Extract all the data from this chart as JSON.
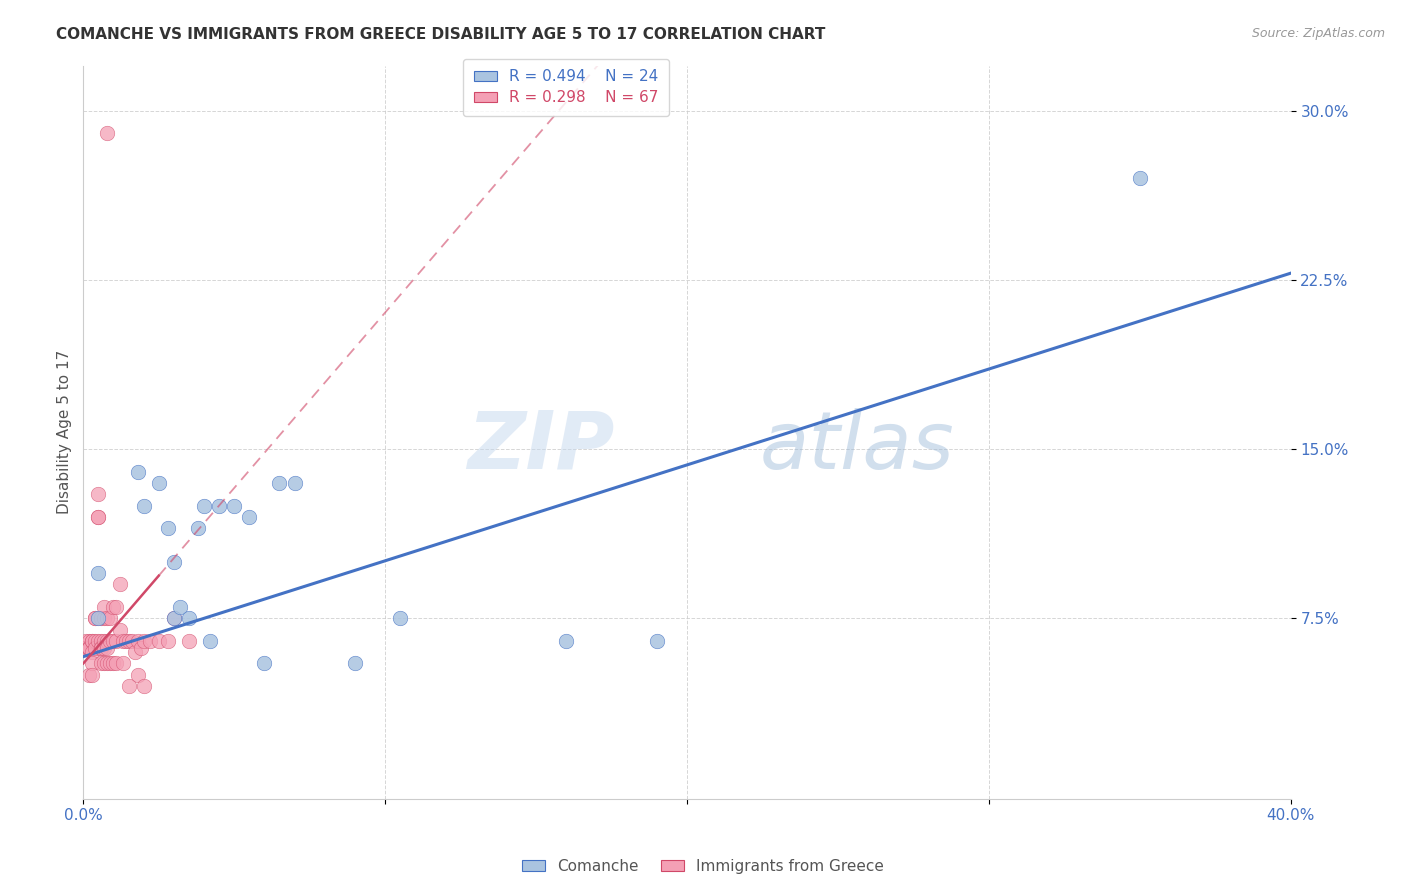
{
  "title": "COMANCHE VS IMMIGRANTS FROM GREECE DISABILITY AGE 5 TO 17 CORRELATION CHART",
  "source": "Source: ZipAtlas.com",
  "ylabel": "Disability Age 5 to 17",
  "xlim": [
    0.0,
    0.4
  ],
  "ylim": [
    -0.005,
    0.32
  ],
  "legend_blue_R": "0.494",
  "legend_blue_N": "24",
  "legend_pink_R": "0.298",
  "legend_pink_N": "67",
  "legend_label_blue": "Comanche",
  "legend_label_pink": "Immigrants from Greece",
  "color_blue": "#aac4e0",
  "color_pink": "#f4a0b5",
  "trendline_blue_color": "#4472c4",
  "trendline_pink_color": "#d04868",
  "watermark_zip": "ZIP",
  "watermark_atlas": "atlas",
  "comanche_x": [
    0.005,
    0.005,
    0.018,
    0.02,
    0.025,
    0.028,
    0.03,
    0.03,
    0.032,
    0.035,
    0.038,
    0.04,
    0.042,
    0.045,
    0.05,
    0.055,
    0.06,
    0.065,
    0.07,
    0.09,
    0.105,
    0.16,
    0.19,
    0.35
  ],
  "comanche_y": [
    0.095,
    0.075,
    0.14,
    0.125,
    0.135,
    0.115,
    0.075,
    0.1,
    0.08,
    0.075,
    0.115,
    0.125,
    0.065,
    0.125,
    0.125,
    0.12,
    0.055,
    0.135,
    0.135,
    0.055,
    0.075,
    0.065,
    0.065,
    0.27
  ],
  "greece_x": [
    0.001,
    0.001,
    0.001,
    0.001,
    0.001,
    0.002,
    0.002,
    0.002,
    0.002,
    0.002,
    0.002,
    0.003,
    0.003,
    0.003,
    0.003,
    0.003,
    0.004,
    0.004,
    0.004,
    0.004,
    0.005,
    0.005,
    0.005,
    0.005,
    0.006,
    0.006,
    0.006,
    0.006,
    0.006,
    0.007,
    0.007,
    0.007,
    0.007,
    0.007,
    0.008,
    0.008,
    0.008,
    0.008,
    0.009,
    0.009,
    0.009,
    0.01,
    0.01,
    0.01,
    0.011,
    0.011,
    0.011,
    0.012,
    0.012,
    0.013,
    0.013,
    0.014,
    0.015,
    0.015,
    0.016,
    0.017,
    0.018,
    0.018,
    0.019,
    0.02,
    0.02,
    0.022,
    0.025,
    0.028,
    0.03,
    0.035,
    0.008
  ],
  "greece_y": [
    0.065,
    0.062,
    0.062,
    0.062,
    0.062,
    0.065,
    0.062,
    0.062,
    0.062,
    0.062,
    0.05,
    0.065,
    0.065,
    0.06,
    0.055,
    0.05,
    0.075,
    0.075,
    0.065,
    0.062,
    0.12,
    0.13,
    0.12,
    0.065,
    0.075,
    0.065,
    0.062,
    0.062,
    0.055,
    0.075,
    0.08,
    0.065,
    0.055,
    0.062,
    0.075,
    0.065,
    0.055,
    0.062,
    0.075,
    0.065,
    0.055,
    0.08,
    0.065,
    0.055,
    0.08,
    0.065,
    0.055,
    0.09,
    0.07,
    0.065,
    0.055,
    0.065,
    0.065,
    0.045,
    0.065,
    0.06,
    0.065,
    0.05,
    0.062,
    0.065,
    0.045,
    0.065,
    0.065,
    0.065,
    0.075,
    0.065,
    0.29
  ],
  "trendline_blue_x0": 0.0,
  "trendline_blue_y0": 0.058,
  "trendline_blue_x1": 0.4,
  "trendline_blue_y1": 0.228,
  "trendline_pink_x0": 0.0,
  "trendline_pink_y0": 0.055,
  "trendline_pink_x1": 0.09,
  "trendline_pink_y1": 0.195
}
